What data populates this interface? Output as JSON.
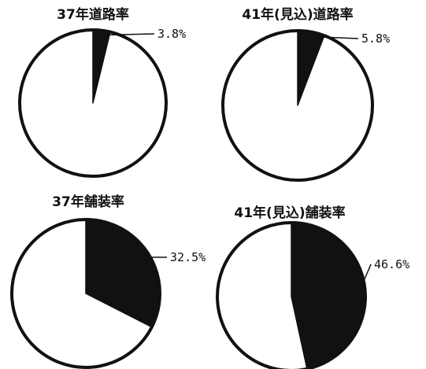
{
  "chart_data": [
    {
      "type": "pie",
      "title": "37年道路率",
      "categories": [
        "道路率",
        ""
      ],
      "values": [
        3.8,
        96.2
      ],
      "labels": [
        "3.8%"
      ],
      "colors": [
        "#111111",
        "#ffffff"
      ]
    },
    {
      "type": "pie",
      "title": "41年(見込)道路率",
      "categories": [
        "道路率",
        ""
      ],
      "values": [
        5.8,
        94.2
      ],
      "labels": [
        "5.8%"
      ],
      "colors": [
        "#111111",
        "#ffffff"
      ]
    },
    {
      "type": "pie",
      "title": "37年舗装率",
      "categories": [
        "舗装率",
        ""
      ],
      "values": [
        32.5,
        67.5
      ],
      "labels": [
        "32.5%"
      ],
      "colors": [
        "#111111",
        "#ffffff"
      ]
    },
    {
      "type": "pie",
      "title": "41年(見込)舗装率",
      "categories": [
        "舗装率",
        ""
      ],
      "values": [
        46.6,
        53.4
      ],
      "labels": [
        "46.6%"
      ],
      "colors": [
        "#111111",
        "#ffffff"
      ]
    }
  ]
}
